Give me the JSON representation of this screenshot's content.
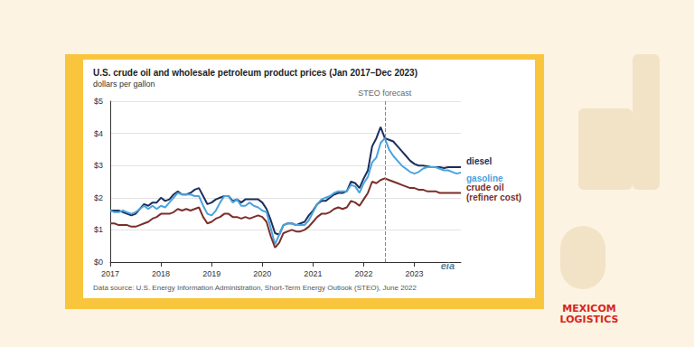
{
  "chart_data": {
    "type": "line",
    "title": "U.S. crude oil and wholesale petroleum product prices (Jan 2017–Dec 2023)",
    "subtitle": "dollars per gallon",
    "note": "Data source: U.S. Energy Information Administration, Short-Term Energy Outlook (STEO), June 2022",
    "logo": "eia",
    "brand": "MEXICOM LOGISTICS",
    "annotations": [
      {
        "text": "STEO forecast",
        "x_index": 65
      }
    ],
    "categories": [
      "2017",
      null,
      null,
      null,
      null,
      null,
      null,
      null,
      null,
      null,
      null,
      null,
      "2018",
      null,
      null,
      null,
      null,
      null,
      null,
      null,
      null,
      null,
      null,
      null,
      "2019",
      null,
      null,
      null,
      null,
      null,
      null,
      null,
      null,
      null,
      null,
      null,
      "2020",
      null,
      null,
      null,
      null,
      null,
      null,
      null,
      null,
      null,
      null,
      null,
      "2021",
      null,
      null,
      null,
      null,
      null,
      null,
      null,
      null,
      null,
      null,
      null,
      "2022",
      null,
      null,
      null,
      null,
      null,
      null,
      null,
      null,
      null,
      null,
      null,
      "2023",
      null,
      null,
      null,
      null,
      null,
      null,
      null,
      null,
      null,
      null,
      null
    ],
    "series": [
      {
        "name": "diesel",
        "color": "#1b2f5b",
        "values": [
          1.6,
          1.6,
          1.6,
          1.55,
          1.5,
          1.45,
          1.5,
          1.65,
          1.8,
          1.75,
          1.85,
          1.85,
          2.0,
          1.9,
          1.95,
          2.1,
          2.2,
          2.1,
          2.1,
          2.15,
          2.25,
          2.3,
          2.05,
          1.8,
          1.85,
          1.95,
          2.0,
          2.05,
          2.05,
          1.9,
          1.95,
          1.85,
          1.95,
          1.95,
          1.95,
          1.95,
          1.85,
          1.65,
          1.3,
          0.9,
          0.85,
          1.15,
          1.2,
          1.2,
          1.15,
          1.2,
          1.25,
          1.45,
          1.6,
          1.8,
          1.9,
          1.9,
          2.0,
          2.1,
          2.15,
          2.15,
          2.2,
          2.5,
          2.45,
          2.3,
          2.6,
          2.85,
          3.6,
          3.85,
          4.2,
          3.85,
          3.8,
          3.75,
          3.6,
          3.45,
          3.3,
          3.15,
          3.05,
          3.0,
          3.0,
          2.98,
          2.95,
          2.95,
          2.95,
          2.92,
          2.95,
          2.95,
          2.95,
          2.95
        ]
      },
      {
        "name": "gasoline",
        "color": "#4aa3df",
        "values": [
          1.6,
          1.55,
          1.55,
          1.6,
          1.55,
          1.5,
          1.55,
          1.65,
          1.75,
          1.65,
          1.75,
          1.65,
          1.75,
          1.7,
          1.85,
          2.0,
          2.15,
          2.1,
          2.1,
          2.1,
          2.05,
          2.05,
          1.75,
          1.5,
          1.45,
          1.6,
          1.85,
          2.05,
          2.05,
          1.85,
          1.95,
          1.75,
          1.75,
          1.85,
          1.75,
          1.7,
          1.6,
          1.55,
          1.05,
          0.55,
          0.85,
          1.15,
          1.2,
          1.2,
          1.15,
          1.15,
          1.15,
          1.3,
          1.55,
          1.8,
          1.95,
          2.0,
          2.05,
          2.15,
          2.2,
          2.2,
          2.2,
          2.4,
          2.35,
          2.15,
          2.45,
          2.65,
          3.1,
          3.25,
          3.7,
          3.85,
          3.5,
          3.3,
          3.15,
          3.0,
          2.9,
          2.8,
          2.75,
          2.8,
          2.9,
          2.95,
          2.95,
          2.95,
          2.9,
          2.85,
          2.85,
          2.8,
          2.75,
          2.78
        ]
      },
      {
        "name": "crude oil\n(refiner cost)",
        "color": "#7a2f2a",
        "values": [
          1.2,
          1.2,
          1.15,
          1.15,
          1.15,
          1.1,
          1.1,
          1.15,
          1.2,
          1.25,
          1.35,
          1.4,
          1.5,
          1.5,
          1.5,
          1.55,
          1.65,
          1.6,
          1.65,
          1.6,
          1.65,
          1.7,
          1.4,
          1.2,
          1.25,
          1.35,
          1.4,
          1.5,
          1.5,
          1.4,
          1.4,
          1.35,
          1.4,
          1.35,
          1.4,
          1.45,
          1.4,
          1.25,
          0.8,
          0.45,
          0.6,
          0.9,
          0.95,
          1.0,
          0.95,
          0.95,
          1.0,
          1.1,
          1.25,
          1.4,
          1.5,
          1.5,
          1.55,
          1.65,
          1.7,
          1.65,
          1.7,
          1.9,
          1.85,
          1.75,
          1.95,
          2.15,
          2.5,
          2.45,
          2.55,
          2.6,
          2.55,
          2.5,
          2.45,
          2.4,
          2.35,
          2.3,
          2.3,
          2.25,
          2.25,
          2.2,
          2.2,
          2.2,
          2.15,
          2.15,
          2.15,
          2.15,
          2.15,
          2.15
        ]
      }
    ],
    "ylim": [
      0,
      5
    ],
    "yticks": [
      {
        "value": 0,
        "label": "$0"
      },
      {
        "value": 1,
        "label": "$1"
      },
      {
        "value": 2,
        "label": "$2"
      },
      {
        "value": 3,
        "label": "$3"
      },
      {
        "value": 4,
        "label": "$4"
      },
      {
        "value": 5,
        "label": "$5"
      }
    ],
    "grid": true
  }
}
